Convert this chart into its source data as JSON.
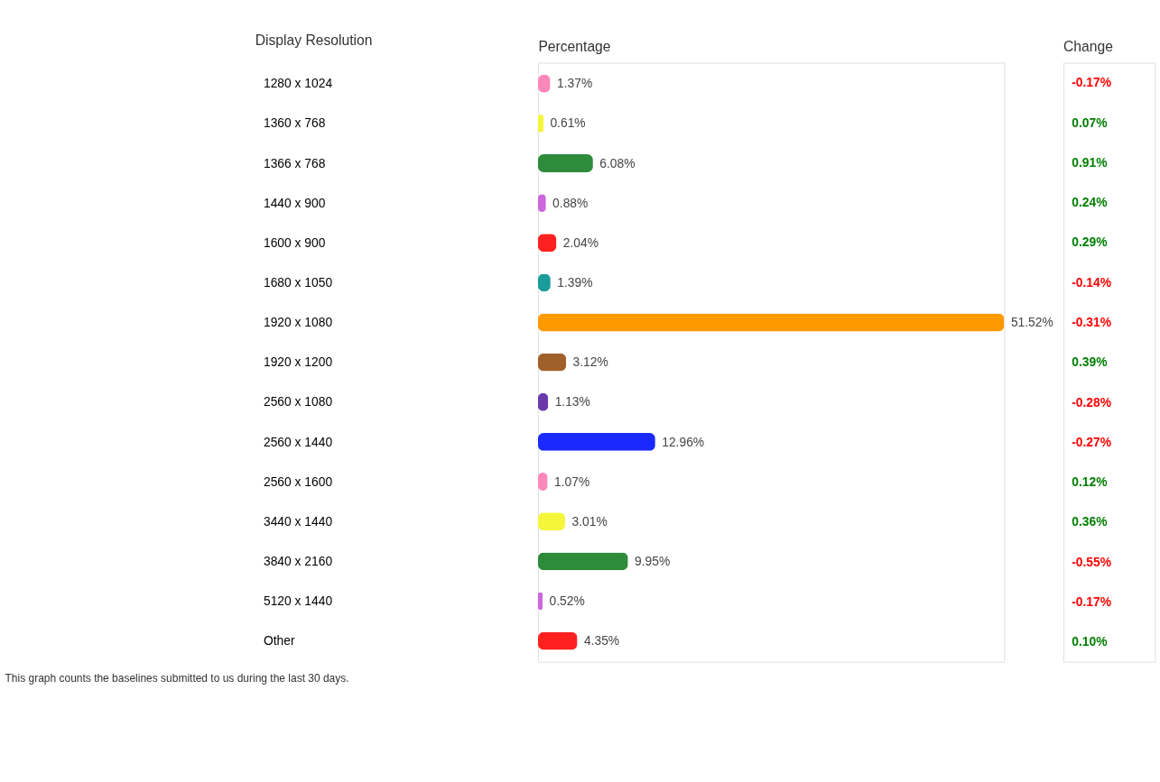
{
  "chart_data": [
    {
      "type": "bar",
      "orientation": "horizontal",
      "ylabel": "Display Resolution",
      "xlabel": "Percentage",
      "categories": [
        "1280 x 1024",
        "1360 x 768",
        "1366 x 768",
        "1440 x 900",
        "1600 x 900",
        "1680 x 1050",
        "1920 x 1080",
        "1920 x 1200",
        "2560 x 1080",
        "2560 x 1440",
        "2560 x 1600",
        "3440 x 1440",
        "3840 x 2160",
        "5120 x 1440",
        "Other"
      ],
      "values": [
        1.37,
        0.61,
        6.08,
        0.88,
        2.04,
        1.39,
        51.52,
        3.12,
        1.13,
        12.96,
        1.07,
        3.01,
        9.95,
        0.52,
        4.35
      ],
      "colors": [
        "#ff88bb",
        "#f5f53a",
        "#2e8b3a",
        "#cc66dd",
        "#ff2020",
        "#1a9c9c",
        "#ff9900",
        "#a0602a",
        "#6a3aaa",
        "#1a2aff",
        "#ff88bb",
        "#f5f53a",
        "#2e8b3a",
        "#cc66dd",
        "#ff2020"
      ],
      "value_labels": [
        "1.37%",
        "0.61%",
        "6.08%",
        "0.88%",
        "2.04%",
        "1.39%",
        "51.52%",
        "3.12%",
        "1.13%",
        "12.96%",
        "1.07%",
        "3.01%",
        "9.95%",
        "0.52%",
        "4.35%"
      ],
      "grid": false,
      "tick_labels": "y",
      "annotations": [
        "This graph counts the baselines submitted to us during the last 30 days."
      ]
    },
    {
      "type": "other",
      "title": "Change",
      "annotations": [
        "-0.17%",
        "0.07%",
        "0.91%",
        "0.24%",
        "0.29%",
        "-0.14%",
        "-0.31%",
        "0.39%",
        "-0.28%",
        "-0.27%",
        "0.12%",
        "0.36%",
        "-0.55%",
        "-0.17%",
        "0.10%"
      ],
      "colors": [
        "#ff0000",
        "#008000",
        "#008000",
        "#008000",
        "#008000",
        "#ff0000",
        "#ff0000",
        "#008000",
        "#ff0000",
        "#ff0000",
        "#008000",
        "#008000",
        "#ff0000",
        "#ff0000",
        "#008000"
      ]
    }
  ]
}
